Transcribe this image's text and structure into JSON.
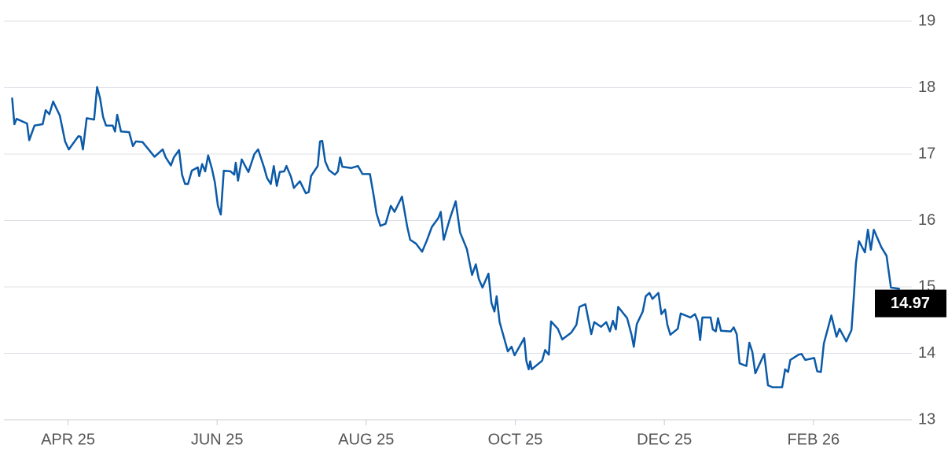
{
  "chart_data": {
    "type": "line",
    "color": "#0b5aa8",
    "grid": true,
    "x": [
      3.25,
      3.28,
      3.31,
      3.45,
      3.48,
      3.55,
      3.66,
      3.7,
      3.75,
      3.8,
      3.89,
      3.96,
      4.01,
      4.14,
      4.17,
      4.2,
      4.25,
      4.35,
      4.39,
      4.43,
      4.47,
      4.51,
      4.6,
      4.63,
      4.66,
      4.71,
      4.82,
      4.87,
      4.91,
      5.0,
      5.08,
      5.16,
      5.27,
      5.31,
      5.38,
      5.42,
      5.49,
      5.53,
      5.57,
      5.61,
      5.66,
      5.74,
      5.76,
      5.8,
      5.84,
      5.88,
      5.93,
      5.97,
      6.01,
      6.05,
      6.09,
      6.18,
      6.23,
      6.25,
      6.28,
      6.33,
      6.42,
      6.5,
      6.55,
      6.63,
      6.67,
      6.72,
      6.76,
      6.8,
      6.84,
      6.9,
      6.93,
      6.99,
      7.03,
      7.11,
      7.19,
      7.23,
      7.26,
      7.35,
      7.38,
      7.41,
      7.45,
      7.5,
      7.58,
      7.62,
      7.65,
      7.68,
      7.8,
      7.89,
      7.95,
      8.05,
      8.1,
      8.14,
      8.19,
      8.26,
      8.33,
      8.38,
      8.48,
      8.55,
      8.59,
      8.67,
      8.75,
      8.81,
      8.88,
      8.97,
      9.0,
      9.04,
      9.12,
      9.2,
      9.26,
      9.35,
      9.42,
      9.47,
      9.51,
      9.56,
      9.64,
      9.68,
      9.72,
      9.75,
      9.79,
      9.87,
      9.9,
      9.95,
      9.99,
      10.12,
      10.15,
      10.18,
      10.2,
      10.22,
      10.36,
      10.4,
      10.45,
      10.48,
      10.57,
      10.63,
      10.75,
      10.82,
      10.86,
      10.94,
      11.02,
      11.06,
      11.15,
      11.22,
      11.27,
      11.31,
      11.35,
      11.38,
      11.5,
      11.56,
      11.59,
      11.63,
      11.71,
      11.75,
      11.8,
      11.84,
      11.92,
      11.96,
      12.01,
      12.04,
      12.08,
      12.18,
      12.22,
      12.35,
      12.41,
      12.45,
      12.48,
      12.51,
      12.62,
      12.65,
      12.69,
      12.72,
      12.76,
      12.89,
      12.93,
      12.97,
      13.01,
      13.1,
      13.14,
      13.18,
      13.22,
      13.34,
      13.39,
      13.45,
      13.58,
      13.62,
      13.66,
      13.69,
      13.8,
      13.84,
      13.89,
      14.01,
      14.05,
      14.1,
      14.14,
      14.24,
      14.31,
      14.35,
      14.44,
      14.51,
      14.54,
      14.57,
      14.61,
      14.69,
      14.73,
      14.77,
      14.81,
      14.91,
      14.98,
      15.04,
      15.16
    ],
    "values": [
      17.85,
      17.45,
      17.53,
      17.46,
      17.21,
      17.43,
      17.45,
      17.66,
      17.6,
      17.79,
      17.58,
      17.19,
      17.07,
      17.27,
      17.26,
      17.07,
      17.54,
      17.52,
      18.01,
      17.84,
      17.56,
      17.43,
      17.43,
      17.34,
      17.59,
      17.34,
      17.33,
      17.12,
      17.19,
      17.18,
      17.07,
      16.96,
      17.07,
      16.95,
      16.83,
      16.95,
      17.06,
      16.69,
      16.55,
      16.55,
      16.75,
      16.8,
      16.67,
      16.85,
      16.74,
      16.98,
      16.78,
      16.57,
      16.22,
      16.09,
      16.75,
      16.74,
      16.69,
      16.87,
      16.6,
      16.92,
      16.73,
      17.0,
      17.07,
      16.8,
      16.64,
      16.55,
      16.82,
      16.52,
      16.73,
      16.74,
      16.82,
      16.66,
      16.49,
      16.59,
      16.41,
      16.43,
      16.67,
      16.82,
      17.19,
      17.2,
      16.89,
      16.76,
      16.69,
      16.74,
      16.95,
      16.81,
      16.79,
      16.82,
      16.7,
      16.7,
      16.38,
      16.1,
      15.92,
      15.95,
      16.22,
      16.13,
      16.36,
      15.91,
      15.71,
      15.65,
      15.53,
      15.69,
      15.9,
      16.04,
      16.13,
      15.71,
      16.02,
      16.29,
      15.82,
      15.57,
      15.18,
      15.34,
      15.12,
      14.99,
      15.2,
      14.76,
      14.63,
      14.86,
      14.47,
      14.15,
      14.03,
      14.1,
      13.97,
      14.23,
      13.88,
      13.76,
      13.88,
      13.76,
      13.89,
      14.05,
      13.98,
      14.48,
      14.37,
      14.21,
      14.31,
      14.43,
      14.7,
      14.74,
      14.29,
      14.47,
      14.4,
      14.47,
      14.33,
      14.49,
      14.36,
      14.7,
      14.53,
      14.28,
      14.1,
      14.44,
      14.63,
      14.86,
      14.91,
      14.82,
      14.91,
      14.59,
      14.66,
      14.43,
      14.28,
      14.37,
      14.6,
      14.54,
      14.59,
      14.48,
      14.2,
      14.54,
      14.54,
      14.36,
      14.33,
      14.53,
      14.34,
      14.33,
      14.39,
      14.29,
      13.85,
      13.81,
      14.16,
      14.02,
      13.7,
      13.99,
      13.52,
      13.49,
      13.49,
      13.76,
      13.72,
      13.9,
      13.98,
      13.99,
      13.9,
      13.93,
      13.73,
      13.72,
      14.15,
      14.57,
      14.25,
      14.37,
      14.18,
      14.35,
      14.82,
      15.36,
      15.69,
      15.52,
      15.86,
      15.56,
      15.86,
      15.6,
      15.47,
      14.99,
      14.97
    ],
    "xlim": [
      3.14,
      15.32
    ],
    "xticks": [
      {
        "value": 4,
        "label": "APR 25"
      },
      {
        "value": 6,
        "label": "JUN 25"
      },
      {
        "value": 8,
        "label": "AUG 25"
      },
      {
        "value": 10,
        "label": "OCT 25"
      },
      {
        "value": 12,
        "label": "DEC 25"
      },
      {
        "value": 14,
        "label": "FEB 26"
      }
    ],
    "ylim": [
      13,
      19
    ],
    "yticks": [
      13,
      14,
      15,
      16,
      17,
      18,
      19
    ]
  }
}
